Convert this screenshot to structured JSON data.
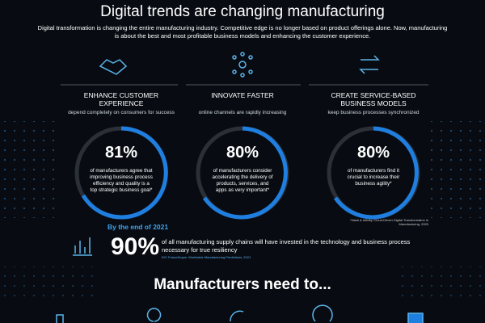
{
  "header": {
    "title": "Digital trends are changing manufacturing",
    "intro": "Digital transformation is changing the entire manufacturing industry. Competitive edge is no longer based on product offerings alone. Now, manufacturing is about the best and most profitable business models and enhancing the customer experience."
  },
  "columns": [
    {
      "heading": "ENHANCE CUSTOMER EXPERIENCE",
      "subheading": "depend completely on consumers for success",
      "stat": "81%",
      "description": "of manufacturers agree that improving business process efficiency and quality is a top strategic business goal*"
    },
    {
      "heading": "INNOVATE FASTER",
      "subheading": "online channels are rapidly increasing",
      "stat": "80%",
      "description": "of manufacturers consider accelerating the delivery of products, services, and apps as very important*"
    },
    {
      "heading": "CREATE SERVICE-BASED BUSINESS MODELS",
      "subheading": "keep business processes synchronized",
      "stat": "80%",
      "description": "of manufacturers find it crucial to increase their business agility*"
    }
  ],
  "footnote": "*Nash & Infinity, Cloud-Driven Digital Transformation in Manufacturing, 2020",
  "highlight": {
    "lead": "By the end of 2021",
    "stat": "90%",
    "text": "of all manufacturing supply chains will have invested in the technology and business process necessary for true resiliency",
    "source": "IDC FutureScape: Worldwide Manufacturing Predictions, 2021"
  },
  "section_title": "Manufacturers need to..."
}
